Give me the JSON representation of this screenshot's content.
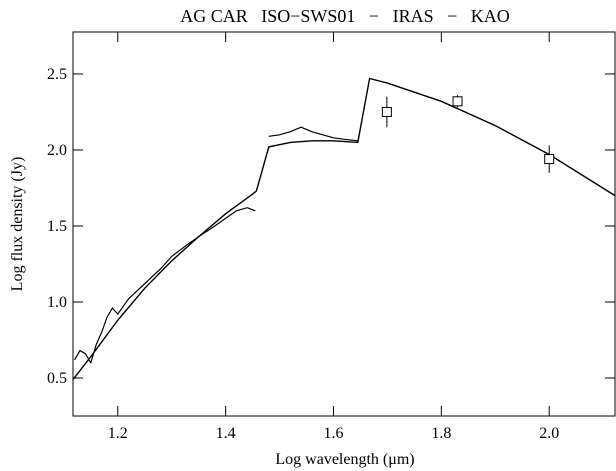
{
  "chart_data": {
    "type": "line",
    "title": "AG CAR   ISO−SWS01   −   IRAS   −   KAO",
    "x_label": "Log wavelength (μm)",
    "y_label": "Log flux density (Jy)",
    "xlim": [
      1.117,
      2.122
    ],
    "ylim": [
      0.25,
      2.776
    ],
    "xticks": [
      1.2,
      1.4,
      1.6,
      1.8,
      {
        "value": 2,
        "label": "2.0"
      }
    ],
    "yticks": [
      {
        "value": 0.5,
        "label": "0.5"
      },
      {
        "value": 1,
        "label": "1.0"
      },
      1.5,
      {
        "value": 2,
        "label": "2.0"
      },
      2.5
    ],
    "color": "#000000",
    "model": {
      "x": [
        1.117,
        1.15,
        1.2,
        1.25,
        1.3,
        1.35,
        1.4,
        1.45,
        1.457,
        1.48,
        1.52,
        1.56,
        1.6,
        1.645,
        1.667,
        1.7,
        1.8,
        1.9,
        2.0,
        2.122
      ],
      "values": [
        0.49,
        0.64,
        0.88,
        1.09,
        1.27,
        1.43,
        1.58,
        1.71,
        1.73,
        2.02,
        2.05,
        2.06,
        2.06,
        2.05,
        2.47,
        2.44,
        2.32,
        2.16,
        1.97,
        1.7
      ]
    },
    "spectrum": {
      "x": [
        1.12,
        1.13,
        1.14,
        1.15,
        1.16,
        1.17,
        1.18,
        1.19,
        1.2,
        1.22,
        1.25,
        1.28,
        1.3,
        1.33,
        1.35,
        1.38,
        1.4,
        1.42,
        1.44,
        1.455,
        1.47,
        1.48,
        1.5,
        1.52,
        1.54,
        1.56,
        1.58,
        1.6,
        1.62,
        1.645
      ],
      "values": [
        0.62,
        0.68,
        0.66,
        0.6,
        0.72,
        0.8,
        0.9,
        0.96,
        0.92,
        1.02,
        1.12,
        1.22,
        1.3,
        1.38,
        1.43,
        1.5,
        1.55,
        1.6,
        1.62,
        1.6,
        null,
        2.09,
        2.1,
        2.12,
        2.15,
        2.12,
        2.1,
        2.08,
        2.07,
        2.06
      ]
    },
    "photometry": {
      "x": [
        1.699,
        1.83,
        2.0
      ],
      "values": [
        2.25,
        2.32,
        1.94
      ],
      "errors": [
        0.1,
        0.04,
        0.09
      ]
    }
  }
}
